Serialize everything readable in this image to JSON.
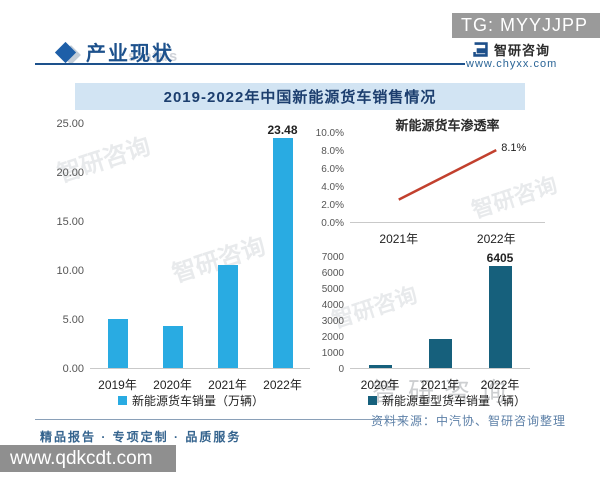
{
  "top_bar": {
    "tg_label": "TG: MYYJJPP"
  },
  "header": {
    "title": "产业现状",
    "status_watermark": "status",
    "brand_name": "智研咨询",
    "brand_site": "www.chyxx.com"
  },
  "banner": {
    "title": "2019-2022年中国新能源货车销售情况"
  },
  "chart_data": [
    {
      "type": "bar",
      "title": "",
      "categories": [
        "2019年",
        "2020年",
        "2021年",
        "2022年"
      ],
      "values": [
        5.0,
        4.3,
        10.5,
        23.48
      ],
      "data_labels": [
        "",
        "",
        "",
        "23.48"
      ],
      "legend": "新能源货车销量（万辆）",
      "ylim": [
        0,
        25
      ],
      "yticks": [
        "25.00",
        "20.00",
        "15.00",
        "10.00",
        "5.00",
        "0.00"
      ],
      "bar_color": "#29abe2",
      "grid": false,
      "legend_position": "bottom"
    },
    {
      "type": "line",
      "title": "新能源货车渗透率",
      "categories": [
        "2021年",
        "2022年"
      ],
      "values": [
        2.6,
        8.1
      ],
      "data_labels": [
        "",
        "8.1%"
      ],
      "ylim": [
        0,
        10
      ],
      "yticks": [
        "10.0%",
        "8.0%",
        "6.0%",
        "4.0%",
        "2.0%",
        "0.0%"
      ],
      "line_color": "#c2402e",
      "grid": false
    },
    {
      "type": "bar",
      "title": "",
      "categories": [
        "2020年",
        "2021年",
        "2022年"
      ],
      "values": [
        200,
        1800,
        6405
      ],
      "data_labels": [
        "",
        "",
        "6405"
      ],
      "legend": "新能源重型货车销量（辆）",
      "ylim": [
        0,
        7000
      ],
      "yticks": [
        "7000",
        "6000",
        "5000",
        "4000",
        "3000",
        "2000",
        "1000",
        "0"
      ],
      "bar_color": "#16607c",
      "grid": false,
      "legend_position": "bottom"
    }
  ],
  "footer": {
    "source": "资料来源：中汽协、智研咨询整理",
    "services": "精品报告 · 专项定制 · 品质服务"
  },
  "bottom_bar": {
    "url": "www.qdkcdt.com"
  },
  "watermarks": {
    "brand": "智研咨询"
  },
  "colors": {
    "accent_bar": "#29abe2",
    "teal_bar": "#16607c",
    "line_red": "#c2402e",
    "banner_bg": "#d2e4f3",
    "header_blue": "#1d518c",
    "gray_bar": "#9a9a9a"
  }
}
